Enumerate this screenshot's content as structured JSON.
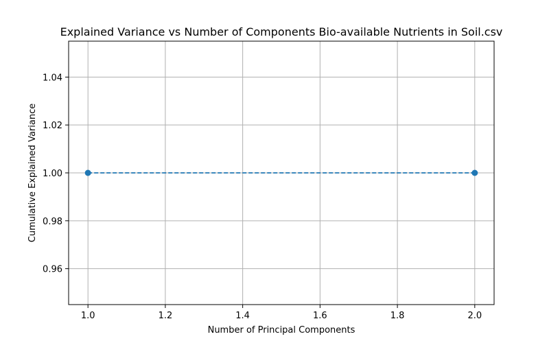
{
  "chart_data": {
    "type": "line",
    "title": "Explained Variance vs Number of Components Bio-available Nutrients in Soil.csv",
    "xlabel": "Number of Principal Components",
    "ylabel": "Cumulative Explained Variance",
    "xlim": [
      0.95,
      2.05
    ],
    "ylim": [
      0.945,
      1.055
    ],
    "x_ticks": [
      1.0,
      1.2,
      1.4,
      1.6,
      1.8,
      2.0
    ],
    "x_tick_labels": [
      "1.0",
      "1.2",
      "1.4",
      "1.6",
      "1.8",
      "2.0"
    ],
    "y_ticks": [
      0.96,
      0.98,
      1.0,
      1.02,
      1.04
    ],
    "y_tick_labels": [
      "0.96",
      "0.98",
      "1.00",
      "1.02",
      "1.04"
    ],
    "grid": true,
    "series": [
      {
        "x": [
          1,
          2
        ],
        "values": [
          1.0,
          1.0
        ],
        "line_style": "dashed",
        "marker": "circle",
        "color": "#1f77b4"
      }
    ]
  }
}
